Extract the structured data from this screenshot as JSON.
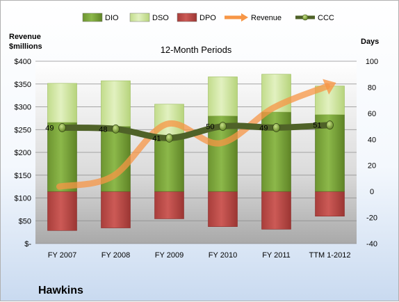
{
  "chart_data": {
    "type": "bar",
    "title": "12-Month Periods",
    "company": "Hawkins",
    "y_left_label": [
      "Revenue",
      "$millions"
    ],
    "y_right_label": "Days",
    "y_left_range": [
      0,
      400
    ],
    "y_left_ticks": [
      "$-",
      "$50",
      "$100",
      "$150",
      "$200",
      "$250",
      "$300",
      "$350",
      "$400"
    ],
    "y_left_tick_values": [
      0,
      50,
      100,
      150,
      200,
      250,
      300,
      350,
      400
    ],
    "y_right_range": [
      -40,
      100
    ],
    "y_right_ticks": [
      "-40",
      "-20",
      "0",
      "20",
      "40",
      "60",
      "80",
      "100"
    ],
    "y_right_tick_values": [
      -40,
      -20,
      0,
      20,
      40,
      60,
      80,
      100
    ],
    "categories": [
      "FY 2007",
      "FY 2008",
      "FY 2009",
      "FY 2010",
      "FY 2011",
      "TTM 1-2012"
    ],
    "legend": [
      "DIO",
      "DSO",
      "DPO",
      "Revenue",
      "CCC"
    ],
    "colors": {
      "DIO": "#7aa23a",
      "DSO": "#d2e8a4",
      "DPO": "#c0504d",
      "Revenue": "#f79646",
      "CCC": "#4f6228"
    },
    "series": [
      {
        "name": "DIO",
        "axis": "days",
        "values": [
          53,
          50,
          42,
          58,
          61,
          59
        ]
      },
      {
        "name": "DSO",
        "axis": "days",
        "values": [
          30,
          35,
          25,
          30,
          29,
          22
        ]
      },
      {
        "name": "DPO",
        "axis": "days",
        "values": [
          -30,
          -28,
          -21,
          -27,
          -29,
          -19
        ]
      },
      {
        "name": "Revenue",
        "axis": "revenue",
        "values": [
          125,
          148,
          262,
          220,
          298,
          345
        ]
      },
      {
        "name": "CCC",
        "axis": "days",
        "values": [
          49,
          48,
          41,
          50,
          49,
          51
        ]
      }
    ],
    "ccc_labels": [
      "49",
      "48",
      "41",
      "50",
      "49",
      "51"
    ],
    "grid": true
  }
}
